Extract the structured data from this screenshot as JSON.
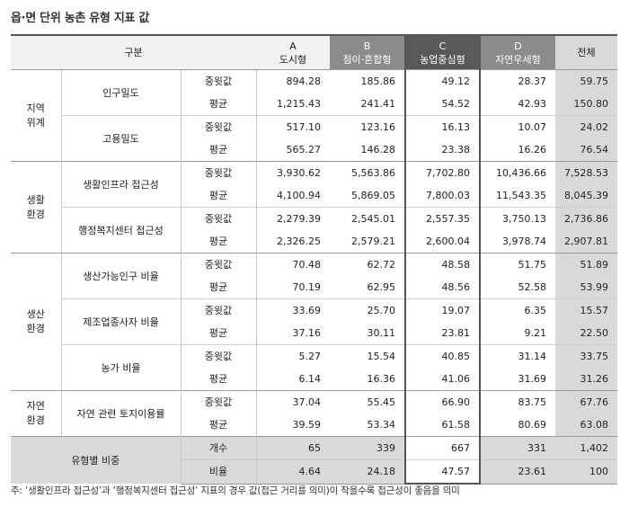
{
  "title": "읍·면 단위 농촌 유형 지표 값",
  "header": {
    "group": "구분",
    "cols": [
      {
        "code": "A",
        "name": "도시형"
      },
      {
        "code": "B",
        "name": "점이·혼합형"
      },
      {
        "code": "C",
        "name": "농업중심형"
      },
      {
        "code": "D",
        "name": "자연우세형"
      }
    ],
    "total": "전체"
  },
  "groups": [
    {
      "name": "지역\n위계",
      "indicators": [
        {
          "name": "인구밀도",
          "rows": [
            {
              "stat": "중윗값",
              "vals": [
                "894.28",
                "185.86",
                "49.12",
                "28.37",
                "59.75"
              ]
            },
            {
              "stat": "평균",
              "vals": [
                "1,215.43",
                "241.41",
                "54.52",
                "42.93",
                "150.80"
              ]
            }
          ]
        },
        {
          "name": "고용밀도",
          "rows": [
            {
              "stat": "중윗값",
              "vals": [
                "517.10",
                "123.16",
                "16.13",
                "10.07",
                "24.02"
              ]
            },
            {
              "stat": "평균",
              "vals": [
                "565.27",
                "146.28",
                "23.38",
                "16.26",
                "76.54"
              ]
            }
          ]
        }
      ]
    },
    {
      "name": "생활\n환경",
      "indicators": [
        {
          "name": "생활인프라 접근성",
          "rows": [
            {
              "stat": "중윗값",
              "vals": [
                "3,930.62",
                "5,563.86",
                "7,702.80",
                "10,436.66",
                "7,528.53"
              ]
            },
            {
              "stat": "평균",
              "vals": [
                "4,100.94",
                "5,869.05",
                "7,800.03",
                "11,543.35",
                "8,045.39"
              ]
            }
          ]
        },
        {
          "name": "행정복지센터 접근성",
          "rows": [
            {
              "stat": "중윗값",
              "vals": [
                "2,279.39",
                "2,545.01",
                "2,557.35",
                "3,750.13",
                "2,736.86"
              ]
            },
            {
              "stat": "평균",
              "vals": [
                "2,326.25",
                "2,579.21",
                "2,600.04",
                "3,978.74",
                "2,907.81"
              ]
            }
          ]
        }
      ]
    },
    {
      "name": "생산\n환경",
      "indicators": [
        {
          "name": "생산가능인구 비율",
          "rows": [
            {
              "stat": "중윗값",
              "vals": [
                "70.48",
                "62.72",
                "48.58",
                "51.75",
                "51.89"
              ]
            },
            {
              "stat": "평균",
              "vals": [
                "70.19",
                "62.95",
                "48.56",
                "52.58",
                "53.99"
              ]
            }
          ]
        },
        {
          "name": "제조업종사자 비율",
          "rows": [
            {
              "stat": "중윗값",
              "vals": [
                "33.69",
                "25.70",
                "19.07",
                "6.35",
                "15.57"
              ]
            },
            {
              "stat": "평균",
              "vals": [
                "37.16",
                "30.11",
                "23.81",
                "9.21",
                "22.50"
              ]
            }
          ]
        },
        {
          "name": "농가 비율",
          "rows": [
            {
              "stat": "중윗값",
              "vals": [
                "5.27",
                "15.54",
                "40.85",
                "31.14",
                "33.75"
              ]
            },
            {
              "stat": "평균",
              "vals": [
                "6.14",
                "16.36",
                "41.06",
                "31.69",
                "31.26"
              ]
            }
          ]
        }
      ]
    },
    {
      "name": "자연\n환경",
      "indicators": [
        {
          "name": "자연 관련 토지이용률",
          "rows": [
            {
              "stat": "중윗값",
              "vals": [
                "37.04",
                "55.45",
                "66.90",
                "83.75",
                "67.76"
              ]
            },
            {
              "stat": "평균",
              "vals": [
                "39.59",
                "53.34",
                "61.58",
                "80.69",
                "63.08"
              ]
            }
          ]
        }
      ]
    }
  ],
  "footer": {
    "name": "유형별 비중",
    "rows": [
      {
        "stat": "개수",
        "vals": [
          "65",
          "339",
          "667",
          "331",
          "1,402"
        ]
      },
      {
        "stat": "비율",
        "vals": [
          "4.64",
          "24.18",
          "47.57",
          "23.61",
          "100"
        ]
      }
    ]
  },
  "note": "주: ‘생활인프라 접근성’과 ‘행정복지센터 접근성’ 지표의 경우 값(접근 거리를 의미)이 작을수록 접근성이 좋음을 의미"
}
